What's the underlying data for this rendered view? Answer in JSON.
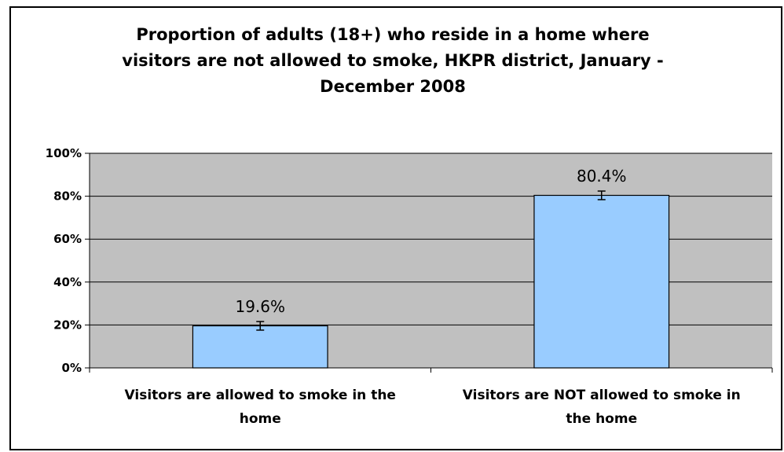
{
  "chart_data": {
    "type": "bar",
    "title": "Proportion of adults (18+) who reside in a home where\nvisitors are not allowed to smoke, HKPR district, January -\nDecember 2008",
    "categories": [
      [
        "Visitors are allowed to smoke in the",
        "home"
      ],
      [
        "Visitors are NOT allowed to smoke in",
        "the home"
      ]
    ],
    "values": [
      19.6,
      80.4
    ],
    "data_labels": [
      "19.6%",
      "80.4%"
    ],
    "error_bars": [
      2.0,
      2.0
    ],
    "ylim": [
      0,
      100
    ],
    "y_ticks": [
      0,
      20,
      40,
      60,
      80,
      100
    ],
    "y_tick_labels": [
      "0%",
      "20%",
      "40%",
      "60%",
      "80%",
      "100%"
    ],
    "xlabel": "",
    "ylabel": "",
    "grid": true,
    "legend": "none",
    "colors": {
      "bar_fill": "#99ccff",
      "plot_background": "#c0c0c0",
      "gridline": "#000000",
      "axis": "#000000"
    }
  }
}
